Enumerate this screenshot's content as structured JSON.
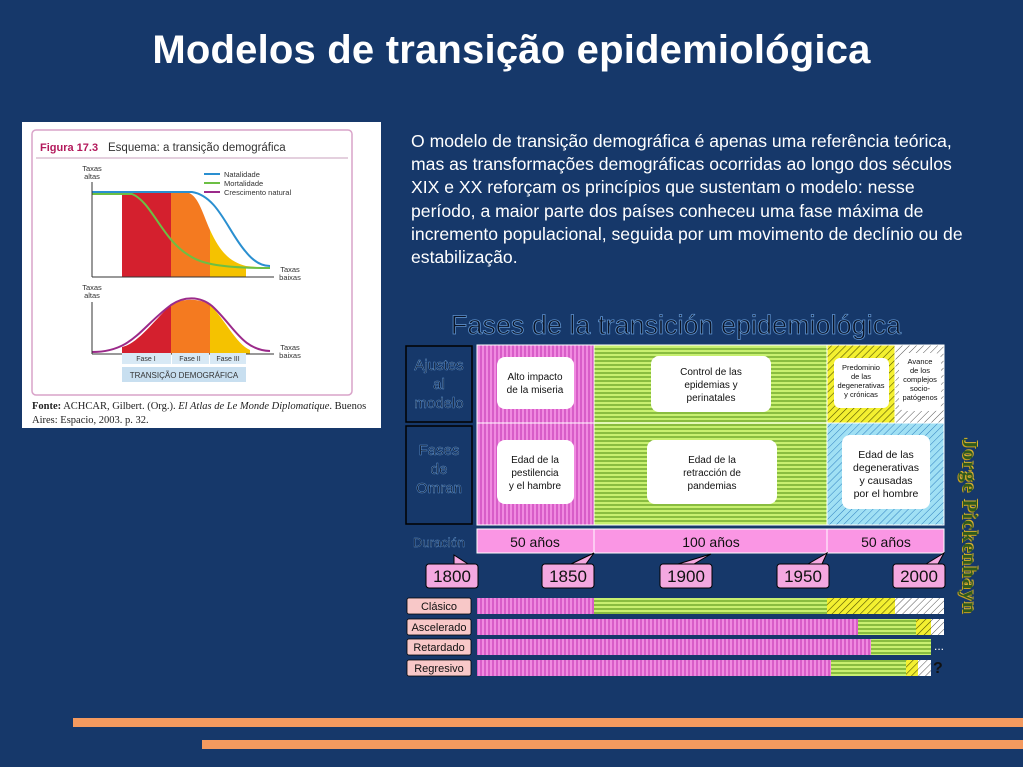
{
  "title": "Modelos de transição epidemiológica",
  "paragraph": "O modelo de transição demográfica é apenas uma referência teórica, mas as transformações demográficas ocorridas ao longo dos séculos XIX e XX reforçam os princípios que sustentam o modelo: nesse período, a maior parte dos países conheceu uma fase máxima de incremento populacional, seguida por um movimento de declínio ou de estabilização.",
  "figure1": {
    "label": "Figura 17.3",
    "caption": "Esquema: a transição demográfica",
    "axis_top_high": [
      "Taxas",
      "altas"
    ],
    "axis_top_low": [
      "Taxas",
      "baixas"
    ],
    "axis_bottom_high": [
      "Taxas",
      "altas"
    ],
    "axis_bottom_low": [
      "Taxas",
      "baixas"
    ],
    "legend": [
      {
        "label": "Natalidade",
        "color": "#2a8fd0"
      },
      {
        "label": "Mortalidade",
        "color": "#6cbf44"
      },
      {
        "label": "Crescimento natural",
        "color": "#9b2a8a"
      }
    ],
    "phases": [
      "Fase I",
      "Fase II",
      "Fase III"
    ],
    "footer": "TRANSIÇÃO DEMOGRÁFICA",
    "source_label": "Fonte:",
    "source_author": "ACHCAR, Gilbert. (Org.).",
    "source_title": "El Atlas de Le Monde Diplomatique",
    "source_rest": ". Buenos Aires: Espacio, 2003. p. 32."
  },
  "figure2": {
    "title": "Fases de la transición epidemiológica",
    "row_labels": {
      "ajustes": [
        "Ajustes",
        "al",
        "modelo"
      ],
      "fases": [
        "Fases",
        "de",
        "Omran"
      ],
      "duracion": "Duración"
    },
    "ajustes": [
      [
        "Alto impacto",
        "de la miseria"
      ],
      [
        "Control de las",
        "epidemias y",
        "perinatales"
      ],
      [
        "Predominio",
        "de las",
        "degenerativas",
        "y crónicas"
      ],
      [
        "Avance",
        "de los",
        "complejos",
        "socio-",
        "patógenos"
      ]
    ],
    "fases": [
      [
        "Edad de la",
        "pestilencia",
        "y el hambre"
      ],
      [
        "Edad de la",
        "retracción de",
        "pandemias"
      ],
      [
        "Edad de las",
        "degenerativas",
        "y causadas",
        "por el hombre"
      ]
    ],
    "durations": [
      "50 años",
      "100 años",
      "50 años"
    ],
    "years": [
      "1800",
      "1850",
      "1900",
      "1950",
      "2000"
    ],
    "models": [
      "Clásico",
      "Ascelerado",
      "Retardado",
      "Regresivo"
    ],
    "marks": [
      "...",
      "?"
    ]
  },
  "signature": "Jorge Pickenhayn"
}
